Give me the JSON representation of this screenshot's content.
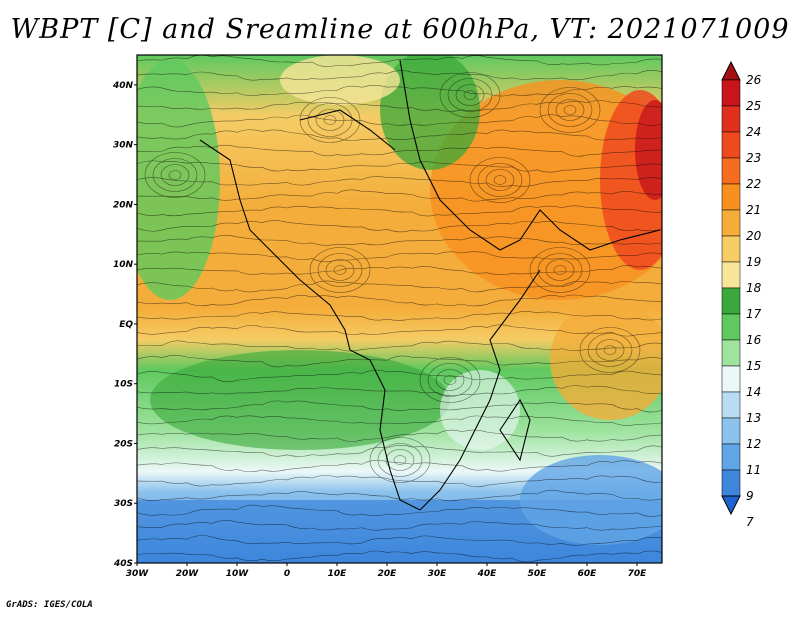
{
  "title": "WBPT [C] and Sreamline at 600hPa, VT: 2021071009",
  "footer": "GrADS: IGES/COLA",
  "map": {
    "lat_labels": [
      "40N",
      "30N",
      "20N",
      "10N",
      "EQ",
      "10S",
      "20S",
      "30S",
      "40S"
    ],
    "lon_labels": [
      "30W",
      "20W",
      "10W",
      "0",
      "10E",
      "20E",
      "30E",
      "40E",
      "50E",
      "60E",
      "70E"
    ],
    "lat_range": [
      -40,
      45
    ],
    "lon_range": [
      -30,
      75
    ]
  },
  "colorbar": {
    "labels": [
      "26",
      "25",
      "24",
      "23",
      "22",
      "21",
      "20",
      "19",
      "18",
      "17",
      "16",
      "15",
      "14",
      "13",
      "12",
      "11",
      "9",
      "7"
    ],
    "colors": [
      "#a50f15",
      "#c8151b",
      "#e0301e",
      "#ef4a1e",
      "#f66d1f",
      "#f7901f",
      "#f4ad3a",
      "#f5cc66",
      "#f8e598",
      "#3aa83a",
      "#5fc95f",
      "#9ee39e",
      "#ecf8f8",
      "#b9dcf2",
      "#8cc2ec",
      "#62a5e6",
      "#3d86dc",
      "#1e63d0"
    ]
  }
}
